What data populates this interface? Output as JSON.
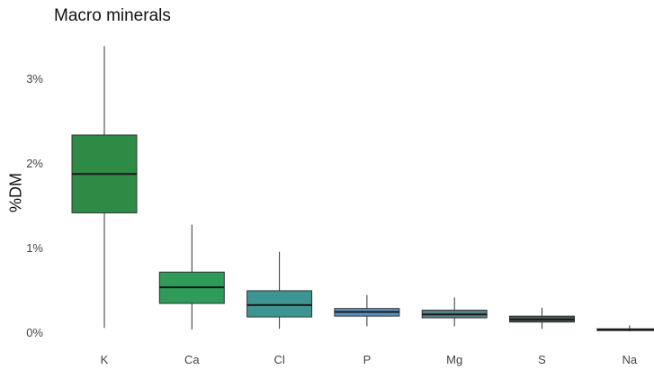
{
  "chart_data": {
    "type": "box",
    "title": "Macro minerals",
    "xlabel": "",
    "ylabel": "%DM",
    "categories": [
      "K",
      "Ca",
      "Cl",
      "P",
      "Mg",
      "S",
      "Na"
    ],
    "y_ticks": [
      0,
      1,
      2,
      3
    ],
    "y_tick_labels": [
      "0%",
      "1%",
      "2%",
      "3%"
    ],
    "ylim": [
      -0.1,
      3.4
    ],
    "grid": false,
    "legend": "none",
    "boxes": [
      {
        "category": "K",
        "min": 0.05,
        "q1": 1.41,
        "median": 1.87,
        "q3": 2.33,
        "max": 3.38,
        "color": "#2e8b45"
      },
      {
        "category": "Ca",
        "min": 0.03,
        "q1": 0.34,
        "median": 0.53,
        "q3": 0.71,
        "max": 1.27,
        "color": "#2f9a5a"
      },
      {
        "category": "Cl",
        "min": 0.04,
        "q1": 0.18,
        "median": 0.32,
        "q3": 0.49,
        "max": 0.95,
        "color": "#3d9591"
      },
      {
        "category": "P",
        "min": 0.07,
        "q1": 0.19,
        "median": 0.24,
        "q3": 0.28,
        "max": 0.44,
        "color": "#5b94c0"
      },
      {
        "category": "Mg",
        "min": 0.07,
        "q1": 0.17,
        "median": 0.21,
        "q3": 0.26,
        "max": 0.41,
        "color": "#5a7f88"
      },
      {
        "category": "S",
        "min": 0.04,
        "q1": 0.12,
        "median": 0.15,
        "q3": 0.19,
        "max": 0.29,
        "color": "#49574e"
      },
      {
        "category": "Na",
        "min": 0.01,
        "q1": 0.025,
        "median": 0.03,
        "q3": 0.04,
        "max": 0.08,
        "color": "#444444"
      }
    ]
  }
}
